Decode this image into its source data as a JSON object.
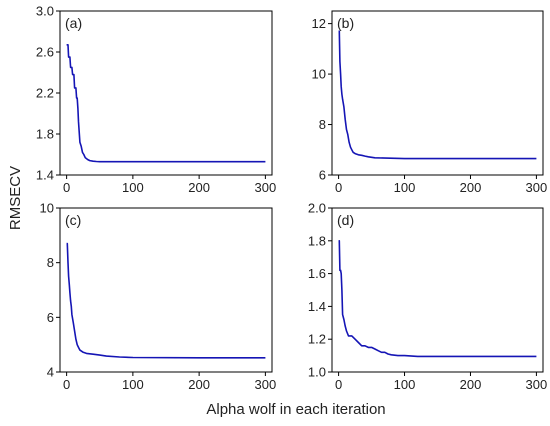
{
  "figure": {
    "ylabel": "RMSECV",
    "xlabel": "Alpha wolf in each iteration"
  },
  "chart_data": [
    {
      "type": "line",
      "panel_label": "(a)",
      "xlim": [
        -10,
        310
      ],
      "ylim": [
        1.4,
        3.0
      ],
      "xticks": [
        0,
        100,
        200,
        300
      ],
      "xtick_labels": [
        "0",
        "100",
        "200",
        "300"
      ],
      "yticks": [
        1.4,
        1.8,
        2.2,
        2.6,
        3.0
      ],
      "ytick_labels": [
        "1.4",
        "1.8",
        "2.2",
        "2.6",
        "3.0"
      ],
      "line_color": "#1515b5",
      "series": [
        {
          "x": [
            0,
            2,
            3,
            5,
            6,
            8,
            9,
            11,
            12,
            14,
            15,
            16,
            17,
            18,
            20,
            22,
            24,
            26,
            28,
            32,
            35,
            40,
            45,
            50,
            100,
            200,
            300
          ],
          "y": [
            2.67,
            2.67,
            2.55,
            2.55,
            2.45,
            2.45,
            2.38,
            2.38,
            2.25,
            2.25,
            2.15,
            2.15,
            2.05,
            1.92,
            1.72,
            1.68,
            1.62,
            1.6,
            1.57,
            1.55,
            1.54,
            1.535,
            1.532,
            1.53,
            1.53,
            1.53,
            1.53
          ]
        }
      ]
    },
    {
      "type": "line",
      "panel_label": "(b)",
      "xlim": [
        -10,
        310
      ],
      "ylim": [
        6,
        12.5
      ],
      "xticks": [
        0,
        100,
        200,
        300
      ],
      "xtick_labels": [
        "0",
        "100",
        "200",
        "300"
      ],
      "yticks": [
        6,
        8,
        10,
        12
      ],
      "ytick_labels": [
        "6",
        "8",
        "10",
        "12"
      ],
      "line_color": "#1515b5",
      "series": [
        {
          "x": [
            0,
            1,
            2,
            3,
            4,
            5,
            6,
            8,
            10,
            12,
            14,
            16,
            18,
            20,
            22,
            25,
            30,
            35,
            40,
            45,
            50,
            55,
            100,
            200,
            300
          ],
          "y": [
            11.7,
            11.7,
            10.5,
            10.0,
            9.5,
            9.2,
            9.0,
            8.7,
            8.2,
            7.8,
            7.6,
            7.3,
            7.1,
            7.0,
            6.9,
            6.85,
            6.8,
            6.78,
            6.75,
            6.72,
            6.7,
            6.68,
            6.65,
            6.65,
            6.65
          ]
        }
      ]
    },
    {
      "type": "line",
      "panel_label": "(c)",
      "xlim": [
        -10,
        310
      ],
      "ylim": [
        4,
        10
      ],
      "xticks": [
        0,
        100,
        200,
        300
      ],
      "xtick_labels": [
        "0",
        "100",
        "200",
        "300"
      ],
      "yticks": [
        4,
        6,
        8,
        10
      ],
      "ytick_labels": [
        "4",
        "6",
        "8",
        "10"
      ],
      "line_color": "#1515b5",
      "series": [
        {
          "x": [
            0,
            1,
            2,
            3,
            4,
            5,
            6,
            7,
            8,
            10,
            12,
            14,
            16,
            18,
            20,
            25,
            30,
            40,
            50,
            60,
            80,
            100,
            200,
            300
          ],
          "y": [
            8.7,
            8.7,
            8.0,
            7.5,
            7.2,
            6.9,
            6.6,
            6.4,
            6.1,
            5.8,
            5.5,
            5.2,
            5.0,
            4.9,
            4.8,
            4.72,
            4.68,
            4.65,
            4.62,
            4.58,
            4.55,
            4.53,
            4.52,
            4.52
          ]
        }
      ]
    },
    {
      "type": "line",
      "panel_label": "(d)",
      "xlim": [
        -10,
        310
      ],
      "ylim": [
        1.0,
        2.0
      ],
      "xticks": [
        0,
        100,
        200,
        300
      ],
      "xtick_labels": [
        "0",
        "100",
        "200",
        "300"
      ],
      "yticks": [
        1.0,
        1.2,
        1.4,
        1.6,
        1.8,
        2.0
      ],
      "ytick_labels": [
        "1.0",
        "1.2",
        "1.4",
        "1.6",
        "1.8",
        "2.0"
      ],
      "line_color": "#1515b5",
      "series": [
        {
          "x": [
            0,
            1,
            2,
            3,
            4,
            5,
            6,
            8,
            10,
            12,
            15,
            20,
            25,
            30,
            35,
            40,
            45,
            50,
            55,
            60,
            65,
            70,
            75,
            80,
            90,
            100,
            120,
            200,
            300
          ],
          "y": [
            1.8,
            1.8,
            1.62,
            1.62,
            1.6,
            1.5,
            1.35,
            1.32,
            1.28,
            1.25,
            1.22,
            1.22,
            1.2,
            1.18,
            1.16,
            1.16,
            1.15,
            1.15,
            1.14,
            1.13,
            1.12,
            1.12,
            1.11,
            1.105,
            1.1,
            1.1,
            1.095,
            1.095,
            1.095
          ]
        }
      ]
    }
  ]
}
